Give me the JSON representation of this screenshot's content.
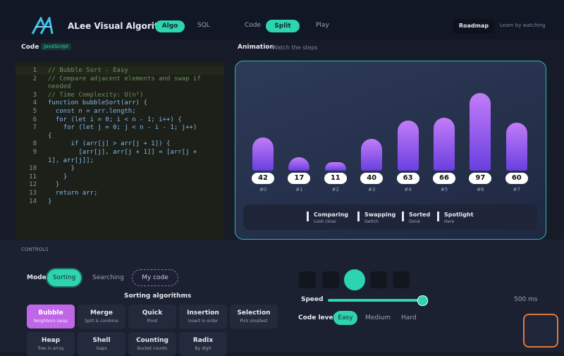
{
  "header": {
    "title": "ALee Visual Algorithm",
    "tabs": [
      "Algo",
      "SQL"
    ],
    "views": [
      "Code",
      "Split",
      "Play"
    ],
    "roadmap": "Roadmap",
    "tagline": "Learn by watching"
  },
  "code_panel": {
    "title": "Code",
    "language": "JavaScript",
    "line_numbers": [
      1,
      2,
      3,
      4,
      5,
      6,
      7,
      8,
      9,
      10,
      11,
      12,
      13,
      14
    ],
    "lines": [
      "// Bubble Sort - Easy",
      "// Compare adjacent elements and swap if needed",
      "// Time Complexity: O(n²)",
      "function bubbleSort(arr) {",
      "  const n = arr.length;",
      "  for (let i = 0; i < n - 1; i++) {",
      "    for (let j = 0; j < n - i - 1; j++) {",
      "      if (arr[j] > arr[j + 1]) {",
      "        [arr[j], arr[j + 1]] = [arr[j + 1], arr[j]];",
      "      }",
      "    }",
      "  }",
      "  return arr;",
      "}"
    ]
  },
  "animation": {
    "title": "Animation",
    "subtitle": "Watch the steps",
    "array": [
      42,
      17,
      11,
      40,
      63,
      66,
      97,
      60
    ],
    "indices": [
      "#0",
      "#1",
      "#2",
      "#3",
      "#4",
      "#5",
      "#6",
      "#7"
    ],
    "legend": [
      {
        "label": "Comparing",
        "desc": "Look close"
      },
      {
        "label": "Swapping",
        "desc": "Switch"
      },
      {
        "label": "Sorted",
        "desc": "Done"
      },
      {
        "label": "Spotlight",
        "desc": "Here"
      }
    ]
  },
  "controls": {
    "title": "CONTROLS",
    "mode_label": "Mode",
    "modes": [
      "Sorting",
      "Searching",
      "My code"
    ],
    "algorithms_title": "Sorting algorithms",
    "algorithms": [
      {
        "name": "Bubble",
        "desc": "Neighbors swap"
      },
      {
        "name": "Merge",
        "desc": "Split & combine"
      },
      {
        "name": "Quick",
        "desc": "Pivot"
      },
      {
        "name": "Insertion",
        "desc": "Insert in order"
      },
      {
        "name": "Selection",
        "desc": "Pick smallest"
      },
      {
        "name": "Heap",
        "desc": "Tree in array"
      },
      {
        "name": "Shell",
        "desc": "Gaps"
      },
      {
        "name": "Counting",
        "desc": "Bucket counts"
      },
      {
        "name": "Radix",
        "desc": "By digit"
      }
    ],
    "speed_label": "Speed",
    "speed_value": "500 ms",
    "code_level_label": "Code level",
    "levels": [
      "Easy",
      "Medium",
      "Hard"
    ]
  }
}
